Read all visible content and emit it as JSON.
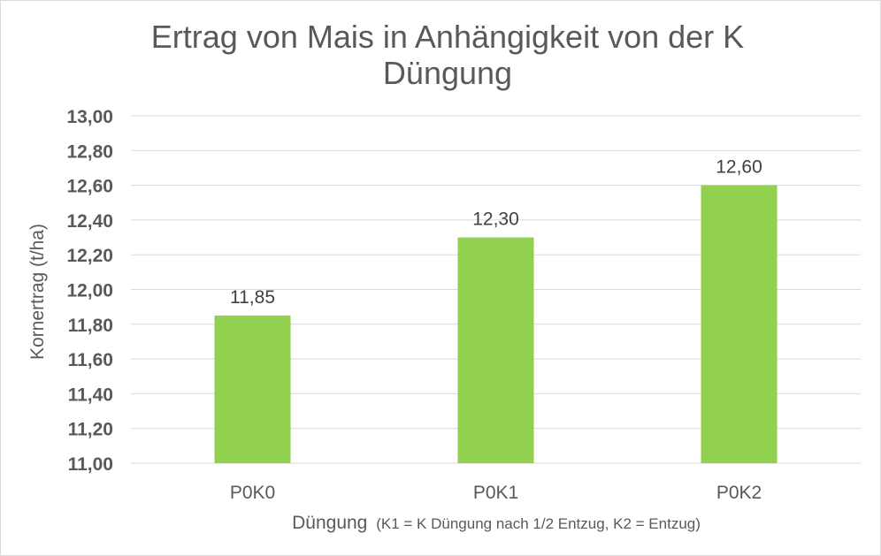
{
  "chart_data": {
    "type": "bar",
    "title": "Ertrag von Mais in Anhängigkeit von der K Düngung",
    "title_lines": [
      "Ertrag von Mais in Anhängigkeit von der K",
      "Düngung"
    ],
    "categories": [
      "P0K0",
      "P0K1",
      "P0K2"
    ],
    "values": [
      11.85,
      12.3,
      12.6
    ],
    "data_labels": [
      "11,85",
      "12,30",
      "12,60"
    ],
    "ylabel": "Kornertrag (t/ha)",
    "xlabel": "Düngung (K1 = K Düngung  nach 1/2 Entzug,  K2 =  Entzug)",
    "xlabel_main": "Düngung",
    "xlabel_note": "(K1 = K Düngung  nach 1/2 Entzug,  K2 =  Entzug)",
    "ylim": [
      11.0,
      13.0
    ],
    "yticks": [
      11.0,
      11.2,
      11.4,
      11.6,
      11.8,
      12.0,
      12.2,
      12.4,
      12.6,
      12.8,
      13.0
    ],
    "ytick_labels": [
      "11,00",
      "11,20",
      "11,40",
      "11,60",
      "11,80",
      "12,00",
      "12,20",
      "12,40",
      "12,60",
      "12,80",
      "13,00"
    ],
    "grid": true,
    "legend": "none",
    "colors": {
      "bar": "#92d050",
      "grid": "#d9d9d9",
      "text": "#595959",
      "label": "#404040"
    }
  }
}
